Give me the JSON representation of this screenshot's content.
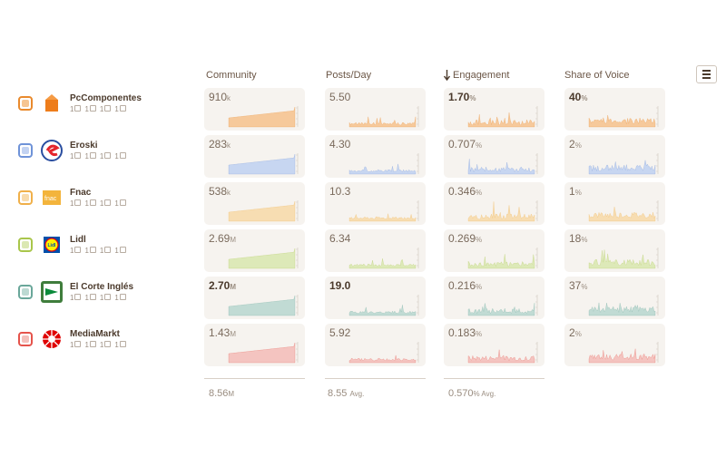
{
  "columns": [
    {
      "label": "Community"
    },
    {
      "label": "Posts/Day"
    },
    {
      "label": "Engagement",
      "sort_icon": "arrow-down-icon"
    },
    {
      "label": "Share of Voice"
    }
  ],
  "menu_icon": "hamburger-menu-icon",
  "brands": [
    {
      "name": "PcComponentes",
      "color": "#e98a2d",
      "fill": "#f6c592",
      "social": [
        "1",
        "1",
        "1",
        "1"
      ],
      "community": {
        "value": "910",
        "unit": "k",
        "bold": false
      },
      "posts": {
        "value": "5.50",
        "unit": "",
        "bold": false
      },
      "engagement": {
        "value": "1.70",
        "unit": "%",
        "bold": true
      },
      "sov": {
        "value": "40",
        "unit": "%",
        "bold": true
      }
    },
    {
      "name": "Eroski",
      "color": "#6f93d8",
      "fill": "#c3d3f2",
      "social": [
        "1",
        "1",
        "1",
        "1"
      ],
      "community": {
        "value": "283",
        "unit": "k",
        "bold": false
      },
      "posts": {
        "value": "4.30",
        "unit": "",
        "bold": false
      },
      "engagement": {
        "value": "0.707",
        "unit": "%",
        "bold": false
      },
      "sov": {
        "value": "2",
        "unit": "%",
        "bold": false
      }
    },
    {
      "name": "Fnac",
      "color": "#f0b04a",
      "fill": "#f8dbac",
      "social": [
        "1",
        "1",
        "1",
        "1"
      ],
      "community": {
        "value": "538",
        "unit": "k",
        "bold": false
      },
      "posts": {
        "value": "10.3",
        "unit": "",
        "bold": false
      },
      "engagement": {
        "value": "0.346",
        "unit": "%",
        "bold": false
      },
      "sov": {
        "value": "1",
        "unit": "%",
        "bold": false
      }
    },
    {
      "name": "Lidl",
      "color": "#a9c64b",
      "fill": "#dbe8b3",
      "social": [
        "1",
        "1",
        "1",
        "1"
      ],
      "community": {
        "value": "2.69",
        "unit": "M",
        "bold": false
      },
      "posts": {
        "value": "6.34",
        "unit": "",
        "bold": false
      },
      "engagement": {
        "value": "0.269",
        "unit": "%",
        "bold": false
      },
      "sov": {
        "value": "18",
        "unit": "%",
        "bold": false
      }
    },
    {
      "name": "El Corte Inglés",
      "color": "#6aa79a",
      "fill": "#bcd9d2",
      "social": [
        "1",
        "1",
        "1",
        "1"
      ],
      "community": {
        "value": "2.70",
        "unit": "M",
        "bold": true
      },
      "posts": {
        "value": "19.0",
        "unit": "",
        "bold": true
      },
      "engagement": {
        "value": "0.216",
        "unit": "%",
        "bold": false
      },
      "sov": {
        "value": "37",
        "unit": "%",
        "bold": false
      }
    },
    {
      "name": "MediaMarkt",
      "color": "#e5534b",
      "fill": "#f4c0bb",
      "social": [
        "1",
        "1",
        "1",
        "1"
      ],
      "community": {
        "value": "1.43",
        "unit": "M",
        "bold": false
      },
      "posts": {
        "value": "5.92",
        "unit": "",
        "bold": false
      },
      "engagement": {
        "value": "0.183",
        "unit": "%",
        "bold": false
      },
      "sov": {
        "value": "2",
        "unit": "%",
        "bold": false
      }
    }
  ],
  "footer": {
    "community": {
      "value": "8.56",
      "unit": "M"
    },
    "posts": {
      "value": "8.55",
      "unit": "Avg."
    },
    "engagement": {
      "value": "0.570",
      "unit": "% Avg."
    }
  }
}
